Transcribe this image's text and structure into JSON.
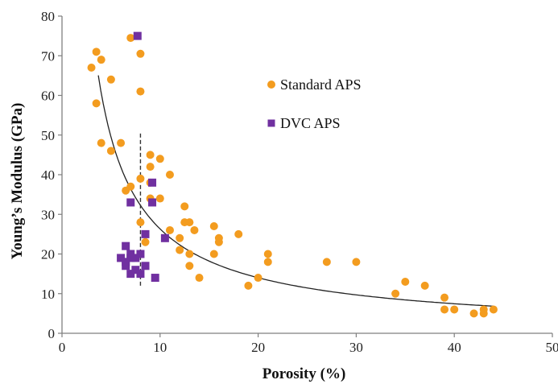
{
  "chart_data": {
    "type": "scatter",
    "title": "",
    "xlabel": "Porosity (%)",
    "ylabel": "Young’s Modulus (GPa)",
    "xlim": [
      0,
      50
    ],
    "ylim": [
      0,
      80
    ],
    "xticks": [
      0,
      10,
      20,
      30,
      40,
      50
    ],
    "yticks": [
      0,
      10,
      20,
      30,
      40,
      50,
      60,
      70,
      80
    ],
    "grid": false,
    "legend_position": "top-right",
    "series": [
      {
        "name": "Standard APS",
        "marker": "circle",
        "color": "#F39C1F",
        "points": [
          [
            3.0,
            67
          ],
          [
            3.5,
            71
          ],
          [
            3.5,
            58
          ],
          [
            4.0,
            69
          ],
          [
            4.0,
            48
          ],
          [
            5.0,
            64
          ],
          [
            5.0,
            46
          ],
          [
            6.0,
            48
          ],
          [
            6.5,
            36
          ],
          [
            7.0,
            37
          ],
          [
            7.0,
            74.5
          ],
          [
            8.0,
            70.5
          ],
          [
            8.0,
            61
          ],
          [
            8.0,
            39
          ],
          [
            8.0,
            28
          ],
          [
            8.5,
            23
          ],
          [
            9.0,
            45
          ],
          [
            9.0,
            42
          ],
          [
            9.0,
            38
          ],
          [
            9.0,
            34
          ],
          [
            10.0,
            44
          ],
          [
            10.0,
            34
          ],
          [
            11.0,
            40
          ],
          [
            11.0,
            26
          ],
          [
            12.0,
            24
          ],
          [
            12.0,
            21
          ],
          [
            12.5,
            32
          ],
          [
            12.5,
            28
          ],
          [
            13.0,
            28
          ],
          [
            13.0,
            20
          ],
          [
            13.0,
            17
          ],
          [
            13.5,
            26
          ],
          [
            14.0,
            14
          ],
          [
            15.5,
            27
          ],
          [
            15.5,
            20
          ],
          [
            16.0,
            24
          ],
          [
            16.0,
            23
          ],
          [
            18.0,
            25
          ],
          [
            19.0,
            12
          ],
          [
            20.0,
            14
          ],
          [
            21.0,
            20
          ],
          [
            21.0,
            18
          ],
          [
            27.0,
            18
          ],
          [
            30.0,
            18
          ],
          [
            34.0,
            10
          ],
          [
            35.0,
            13
          ],
          [
            37.0,
            12
          ],
          [
            39.0,
            9
          ],
          [
            39.0,
            6
          ],
          [
            40.0,
            6
          ],
          [
            42.0,
            5
          ],
          [
            43.0,
            6
          ],
          [
            43.0,
            5
          ],
          [
            44.0,
            6
          ]
        ]
      },
      {
        "name": "DVC APS",
        "marker": "square",
        "color": "#7030A0",
        "points": [
          [
            7.7,
            75
          ],
          [
            9.2,
            38
          ],
          [
            9.2,
            33
          ],
          [
            7.0,
            33
          ],
          [
            8.5,
            25
          ],
          [
            10.5,
            24
          ],
          [
            6.5,
            22
          ],
          [
            6.0,
            19
          ],
          [
            6.5,
            18
          ],
          [
            7.0,
            19
          ],
          [
            7.5,
            19
          ],
          [
            7.0,
            20
          ],
          [
            8.0,
            20
          ],
          [
            6.5,
            17
          ],
          [
            8.5,
            17
          ],
          [
            7.5,
            16
          ],
          [
            7.0,
            15
          ],
          [
            8.0,
            15
          ],
          [
            9.5,
            14
          ]
        ]
      }
    ],
    "trendline": {
      "type": "power",
      "coef": 214,
      "exp": -0.91,
      "x_range": [
        3.7,
        44
      ]
    },
    "reference_line": {
      "x": 8,
      "y_range": [
        12,
        51
      ],
      "style": "dashed"
    }
  }
}
